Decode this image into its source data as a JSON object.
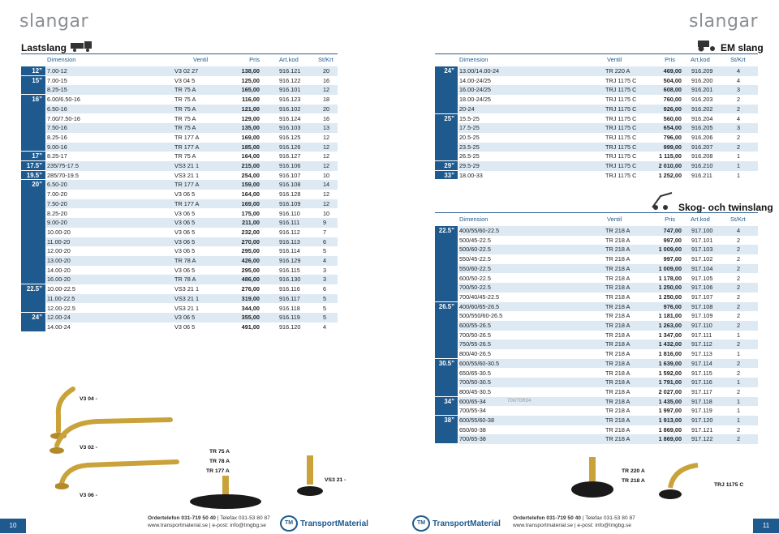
{
  "brand": "slangar",
  "left": {
    "section": "Lastslang",
    "page_number": "10",
    "headers": [
      "Dimension",
      "Ventil",
      "Pris",
      "Art.kod",
      "St/Krt"
    ],
    "groups": [
      {
        "size": "12”",
        "rows": [
          [
            "7.00-12",
            "V3 02 27",
            "138,00",
            "916.121",
            "20"
          ]
        ]
      },
      {
        "size": "15”",
        "rows": [
          [
            "7.00-15",
            "V3 04 5",
            "125,00",
            "916.122",
            "16"
          ],
          [
            "8.25-15",
            "TR 75 A",
            "165,00",
            "916.101",
            "12"
          ]
        ]
      },
      {
        "size": "16”",
        "rows": [
          [
            "6.00/6.50-16",
            "TR 75 A",
            "116,00",
            "916.123",
            "18"
          ],
          [
            "6.50-16",
            "TR 75 A",
            "121,00",
            "916.102",
            "20"
          ],
          [
            "7.00/7.50-16",
            "TR 75 A",
            "129,00",
            "916.124",
            "16"
          ],
          [
            "7.50-16",
            "TR 75 A",
            "135,00",
            "916.103",
            "13"
          ],
          [
            "8.25-16",
            "TR 177 A",
            "169,00",
            "916.125",
            "12"
          ],
          [
            "9.00-16",
            "TR 177 A",
            "185,00",
            "916.126",
            "12"
          ]
        ]
      },
      {
        "size": "17”",
        "rows": [
          [
            "8.25-17",
            "TR 75 A",
            "164,00",
            "916.127",
            "12"
          ]
        ]
      },
      {
        "size": "17.5”",
        "rows": [
          [
            "235/75-17.5",
            "VS3 21 1",
            "215,00",
            "916.106",
            "12"
          ]
        ]
      },
      {
        "size": "19.5”",
        "rows": [
          [
            "285/70-19.5",
            "VS3 21 1",
            "254,00",
            "916.107",
            "10"
          ]
        ]
      },
      {
        "size": "20”",
        "rows": [
          [
            "6.50-20",
            "TR 177 A",
            "159,00",
            "916.108",
            "14"
          ],
          [
            "7.00-20",
            "V3 06 5",
            "164,00",
            "916.128",
            "12"
          ],
          [
            "7.50-20",
            "TR 177 A",
            "169,00",
            "916.109",
            "12"
          ],
          [
            "8.25-20",
            "V3 06 5",
            "175,00",
            "916.110",
            "10"
          ],
          [
            "9.00-20",
            "V3 06 5",
            "211,00",
            "916.111",
            "9"
          ],
          [
            "10.00-20",
            "V3 06 5",
            "232,00",
            "916.112",
            "7"
          ],
          [
            "11.00-20",
            "V3 06 5",
            "270,00",
            "916.113",
            "6"
          ],
          [
            "12.00-20",
            "V3 06 5",
            "295,00",
            "916.114",
            "5"
          ],
          [
            "13.00-20",
            "TR 78 A",
            "426,00",
            "916.129",
            "4"
          ],
          [
            "14.00-20",
            "V3 06 5",
            "295,00",
            "916.115",
            "3"
          ],
          [
            "16.00-20",
            "TR 78 A",
            "486,00",
            "916.130",
            "3"
          ]
        ]
      },
      {
        "size": "22.5”",
        "rows": [
          [
            "10.00-22.5",
            "VS3 21 1",
            "276,00",
            "916.116",
            "6"
          ],
          [
            "11.00-22.5",
            "VS3 21 1",
            "319,00",
            "916.117",
            "5"
          ],
          [
            "12.00-22.5",
            "VS3 21 1",
            "344,00",
            "916.118",
            "5"
          ]
        ]
      },
      {
        "size": "24”",
        "rows": [
          [
            "12.00-24",
            "V3 06 5",
            "355,00",
            "916.119",
            "5"
          ],
          [
            "14.00-24",
            "V3 06 5",
            "491,00",
            "916.120",
            "4"
          ]
        ]
      }
    ],
    "products": {
      "v304": "V3 04 -",
      "v302": "V3 02 -",
      "v306": "V3 06 -",
      "tr75": "TR 75 A",
      "tr78": "TR 78 A",
      "tr177": "TR 177 A",
      "vs321": "VS3 21 -"
    }
  },
  "right": {
    "section_em": "EM slang",
    "section_skog": "Skog- och twinslang",
    "page_number": "11",
    "headers": [
      "Dimension",
      "Ventil",
      "Pris",
      "Art.kod",
      "St/Krt"
    ],
    "em_groups": [
      {
        "size": "24”",
        "rows": [
          [
            "13.00/14.00-24",
            "TR 220 A",
            "469,00",
            "916.209",
            "4"
          ],
          [
            "14.00-24/25",
            "TRJ 1175 C",
            "504,00",
            "916.200",
            "4"
          ],
          [
            "16.00-24/25",
            "TRJ 1175 C",
            "608,00",
            "916.201",
            "3"
          ],
          [
            "18.00-24/25",
            "TRJ 1175 C",
            "760,00",
            "916.203",
            "2"
          ],
          [
            "20-24",
            "TRJ 1175 C",
            "926,00",
            "916.202",
            "2"
          ]
        ]
      },
      {
        "size": "25”",
        "rows": [
          [
            "15.5-25",
            "TRJ 1175 C",
            "560,00",
            "916.204",
            "4"
          ],
          [
            "17.5-25",
            "TRJ 1175 C",
            "654,00",
            "916.205",
            "3"
          ],
          [
            "20.5-25",
            "TRJ 1175 C",
            "796,00",
            "916.206",
            "2"
          ],
          [
            "23.5-25",
            "TRJ 1175 C",
            "999,00",
            "916.207",
            "2"
          ],
          [
            "26.5-25",
            "TRJ 1175 C",
            "1 115,00",
            "916.208",
            "1"
          ]
        ]
      },
      {
        "size": "29”",
        "rows": [
          [
            "29.5-29",
            "TRJ 1175 C",
            "2 010,00",
            "916.210",
            "1"
          ]
        ]
      },
      {
        "size": "33”",
        "rows": [
          [
            "18.00-33",
            "TRJ 1175 C",
            "1 252,00",
            "916.211",
            "1"
          ]
        ]
      }
    ],
    "skog_groups": [
      {
        "size": "22.5”",
        "rows": [
          [
            "400/55/60-22.5",
            "TR 218 A",
            "747,00",
            "917.100",
            "4"
          ],
          [
            "500/45-22.5",
            "TR 218 A",
            "997,00",
            "917.101",
            "2"
          ],
          [
            "500/60-22.5",
            "TR 218 A",
            "1 009,00",
            "917.103",
            "2"
          ],
          [
            "550/45-22.5",
            "TR 218 A",
            "997,00",
            "917.102",
            "2"
          ],
          [
            "550/60-22.5",
            "TR 218 A",
            "1 009,00",
            "917.104",
            "2"
          ],
          [
            "600/50-22.5",
            "TR 218 A",
            "1 178,00",
            "917.105",
            "2"
          ],
          [
            "700/50-22.5",
            "TR 218 A",
            "1 250,00",
            "917.106",
            "2"
          ],
          [
            "700/40/45-22.5",
            "TR 218 A",
            "1 250,00",
            "917.107",
            "2"
          ]
        ]
      },
      {
        "size": "26.5”",
        "rows": [
          [
            "400/60/65-26.5",
            "TR 218 A",
            "976,00",
            "917.108",
            "2"
          ],
          [
            "500/550/60-26.5",
            "TR 218 A",
            "1 181,00",
            "917.109",
            "2"
          ],
          [
            "600/55-26.5",
            "TR 218 A",
            "1 263,00",
            "917.110",
            "2"
          ],
          [
            "700/50-26.5",
            "TR 218 A",
            "1 347,00",
            "917.111",
            "1"
          ],
          [
            "750/55-26.5",
            "TR 218 A",
            "1 432,00",
            "917.112",
            "2"
          ],
          [
            "800/40-26.5",
            "TR 218 A",
            "1 816,00",
            "917.113",
            "1"
          ]
        ]
      },
      {
        "size": "30.5”",
        "rows": [
          [
            "600/55/60-30.5",
            "TR 218 A",
            "1 639,00",
            "917.114",
            "2"
          ],
          [
            "650/65-30.5",
            "TR 218 A",
            "1 592,00",
            "917.115",
            "2"
          ],
          [
            "700/50-30.5",
            "TR 218 A",
            "1 791,00",
            "917.116",
            "1"
          ],
          [
            "800/45-30.5",
            "TR 218 A",
            "2 027,00",
            "917.117",
            "2"
          ]
        ]
      },
      {
        "size": "34”",
        "rows": [
          [
            "600/65-34",
            "TR 218 A",
            "1 435,00",
            "917.118",
            "1"
          ],
          [
            "700/55-34",
            "TR 218 A",
            "1 997,00",
            "917.119",
            "1"
          ]
        ]
      },
      {
        "size": "38”",
        "rows": [
          [
            "600/55/60-38",
            "TR 218 A",
            "1 913,00",
            "917.120",
            "1"
          ],
          [
            "650/60-38",
            "TR 218 A",
            "1 869,00",
            "917.121",
            "2"
          ],
          [
            "700/65-38",
            "TR 218 A",
            "1 869,00",
            "917.122",
            "2"
          ]
        ]
      }
    ],
    "note_34": "700/70R34",
    "products": {
      "tr220": "TR 220 A",
      "tr218": "TR 218 A",
      "trj1175": "TRJ 1175 C"
    }
  },
  "footer": {
    "order_label": "Ordertelefon 031-719 50 40",
    "fax": "| Telefax 031-53 80 87",
    "web": "www.transportmaterial.se",
    "email": "| e-post: info@tmgbg.se",
    "logo_mark": "TM",
    "logo_text": "TransportMaterial"
  },
  "colors": {
    "accent": "#1e5a8e",
    "row_alt": "#dde9f3",
    "brand_gray": "#8a8f94"
  }
}
